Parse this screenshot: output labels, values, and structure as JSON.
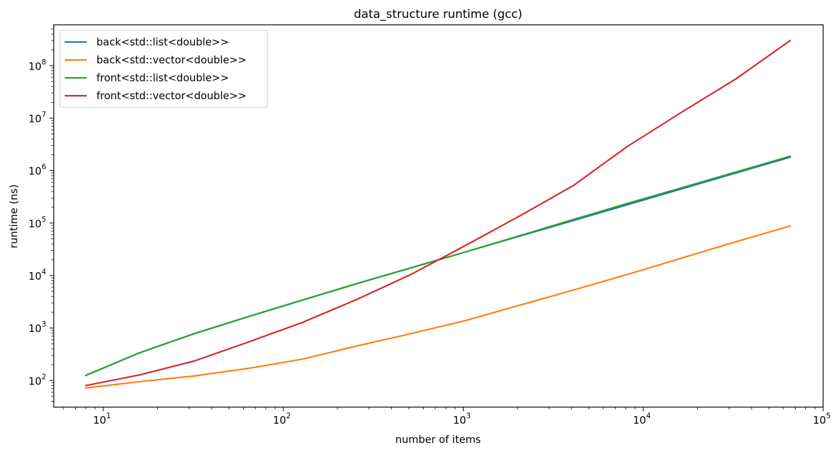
{
  "chart_data": {
    "type": "line",
    "title": "data_structure runtime (gcc)",
    "xlabel": "number of items",
    "ylabel": "runtime (ns)",
    "xscale": "log",
    "yscale": "log",
    "xlim": [
      5.3,
      100000
    ],
    "ylim": [
      31,
      600000000
    ],
    "grid": false,
    "legend_position": "top-left",
    "x": [
      8,
      16,
      32,
      64,
      128,
      256,
      512,
      1024,
      2048,
      4096,
      8192,
      16384,
      32768,
      65536
    ],
    "x_ticks": [
      {
        "value": 10,
        "base": "10",
        "exp": "1"
      },
      {
        "value": 100,
        "base": "10",
        "exp": "2"
      },
      {
        "value": 1000,
        "base": "10",
        "exp": "3"
      },
      {
        "value": 10000,
        "base": "10",
        "exp": "4"
      },
      {
        "value": 100000,
        "base": "10",
        "exp": "5"
      }
    ],
    "y_ticks": [
      {
        "value": 100,
        "base": "10",
        "exp": "2"
      },
      {
        "value": 1000,
        "base": "10",
        "exp": "3"
      },
      {
        "value": 10000,
        "base": "10",
        "exp": "4"
      },
      {
        "value": 100000,
        "base": "10",
        "exp": "5"
      },
      {
        "value": 1000000,
        "base": "10",
        "exp": "6"
      },
      {
        "value": 10000000,
        "base": "10",
        "exp": "7"
      },
      {
        "value": 100000000,
        "base": "10",
        "exp": "8"
      }
    ],
    "series": [
      {
        "name": "back<std::list<double>>",
        "color": "#1f77b4",
        "values": [
          125,
          340,
          780,
          1650,
          3400,
          7000,
          14000,
          28000,
          56000,
          112000,
          224000,
          450000,
          900000,
          1800000
        ]
      },
      {
        "name": "back<std::vector<double>>",
        "color": "#ff7f0e",
        "values": [
          72,
          95,
          122,
          170,
          255,
          455,
          780,
          1380,
          2700,
          5300,
          10500,
          21500,
          44000,
          88000
        ]
      },
      {
        "name": "front<std::list<double>>",
        "color": "#2ca02c",
        "values": [
          125,
          340,
          780,
          1650,
          3400,
          7000,
          14000,
          28000,
          57000,
          117000,
          237000,
          470000,
          940000,
          1880000
        ]
      },
      {
        "name": "front<std::vector<double>>",
        "color": "#d62728",
        "values": [
          80,
          128,
          235,
          540,
          1280,
          3500,
          10500,
          37000,
          135000,
          520000,
          2900000,
          13000000,
          56000000,
          300000000
        ]
      }
    ]
  }
}
